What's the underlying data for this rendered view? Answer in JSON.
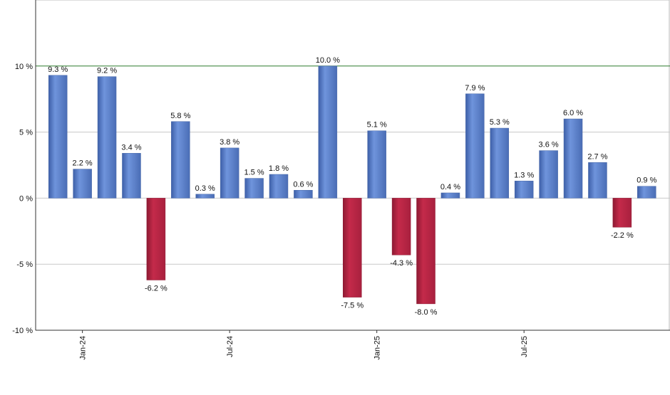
{
  "chart_data": {
    "type": "bar",
    "categories": [
      null,
      "Jan-24",
      null,
      null,
      null,
      null,
      null,
      "Jul-24",
      null,
      null,
      null,
      null,
      null,
      "Jan-25",
      null,
      null,
      null,
      null,
      null,
      "Jul-25",
      null,
      null,
      null,
      null,
      null
    ],
    "values": [
      9.3,
      2.2,
      9.2,
      3.4,
      -6.2,
      5.8,
      0.3,
      3.8,
      1.5,
      1.8,
      0.6,
      10.0,
      -7.5,
      5.1,
      -4.3,
      -8.0,
      0.4,
      7.9,
      5.3,
      1.3,
      3.6,
      6.0,
      2.7,
      -2.2,
      0.9
    ],
    "value_labels": [
      "9.3 %",
      "2.2 %",
      "9.2 %",
      "3.4 %",
      "-6.2 %",
      "5.8 %",
      "0.3 %",
      "3.8 %",
      "1.5 %",
      "1.8 %",
      "0.6 %",
      "10.0 %",
      "-7.5 %",
      "5.1 %",
      "-4.3 %",
      "-8.0 %",
      "0.4 %",
      "7.9 %",
      "5.3 %",
      "1.3 %",
      "3.6 %",
      "6.0 %",
      "2.7 %",
      "-2.2 %",
      "0.9 %"
    ],
    "positive_color": "#6f94dc",
    "negative_color": "#c42a4a",
    "ylim": [
      -10,
      15
    ],
    "yticks": [
      {
        "value": -10,
        "label": "-10 %"
      },
      {
        "value": -5,
        "label": "-5 %"
      },
      {
        "value": 0,
        "label": "0 %"
      },
      {
        "value": 5,
        "label": "5 %"
      },
      {
        "value": 10,
        "label": "10 %"
      }
    ],
    "grid": true,
    "highlight_line": 10,
    "highlight_color": "#2e7d2e"
  }
}
